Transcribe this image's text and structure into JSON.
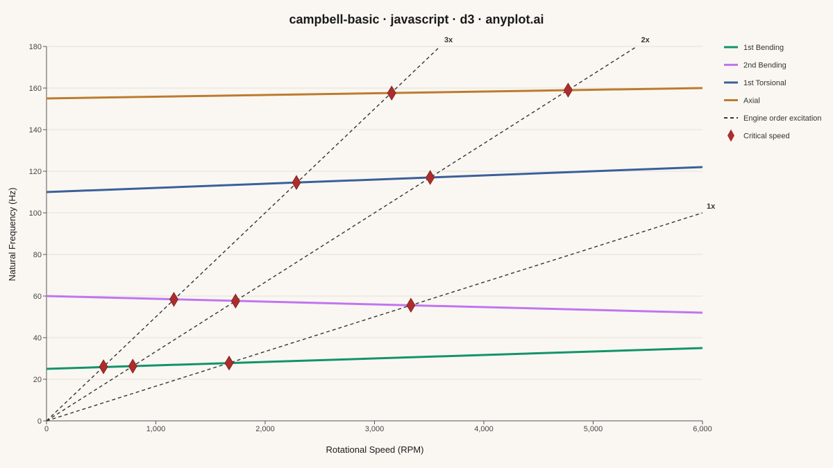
{
  "chart_data": {
    "type": "line",
    "title": "campbell-basic · javascript · d3 · anyplot.ai",
    "xlabel": "Rotational Speed (RPM)",
    "ylabel": "Natural Frequency (Hz)",
    "xlim": [
      0,
      6000
    ],
    "ylim": [
      0,
      180
    ],
    "xticks": [
      0,
      1000,
      2000,
      3000,
      4000,
      5000,
      6000
    ],
    "xtick_labels": [
      "0",
      "1,000",
      "2,000",
      "3,000",
      "4,000",
      "5,000",
      "6,000"
    ],
    "yticks": [
      0,
      20,
      40,
      60,
      80,
      100,
      120,
      140,
      160,
      180
    ],
    "ytick_labels": [
      "0",
      "20",
      "40",
      "60",
      "80",
      "100",
      "120",
      "140",
      "160",
      "180"
    ],
    "grid": "horizontal",
    "legend_position": "right",
    "modes": [
      {
        "name": "1st Bending",
        "color": "#12936b",
        "x": [
          0,
          6000
        ],
        "y": [
          25,
          35
        ]
      },
      {
        "name": "2nd Bending",
        "color": "#c175f0",
        "x": [
          0,
          6000
        ],
        "y": [
          60,
          52
        ]
      },
      {
        "name": "1st Torsional",
        "color": "#3b5f9a",
        "x": [
          0,
          6000
        ],
        "y": [
          110,
          122
        ]
      },
      {
        "name": "Axial",
        "color": "#bd7b2d",
        "x": [
          0,
          6000
        ],
        "y": [
          155,
          160
        ]
      }
    ],
    "engine_orders": [
      {
        "label": "1x",
        "order": 1,
        "x": [
          0,
          6000
        ],
        "y": [
          0,
          100
        ]
      },
      {
        "label": "2x",
        "order": 2,
        "x": [
          0,
          5400
        ],
        "y": [
          0,
          180
        ]
      },
      {
        "label": "3x",
        "order": 3,
        "x": [
          0,
          3600
        ],
        "y": [
          0,
          180
        ]
      }
    ],
    "engine_order_legend": "Engine order excitation",
    "engine_order_color": "#333333",
    "critical_speeds": [
      {
        "x": 521,
        "y": 26.0
      },
      {
        "x": 789,
        "y": 26.3
      },
      {
        "x": 1670,
        "y": 27.8
      },
      {
        "x": 1165,
        "y": 58.4
      },
      {
        "x": 1729,
        "y": 57.6
      },
      {
        "x": 3333,
        "y": 55.6
      },
      {
        "x": 2286,
        "y": 114.6
      },
      {
        "x": 3509,
        "y": 117.0
      },
      {
        "x": 3157,
        "y": 157.6
      },
      {
        "x": 4771,
        "y": 159.0
      }
    ],
    "critical_speed_legend": "Critical speed",
    "critical_speed_color": "#ad2d2d"
  }
}
